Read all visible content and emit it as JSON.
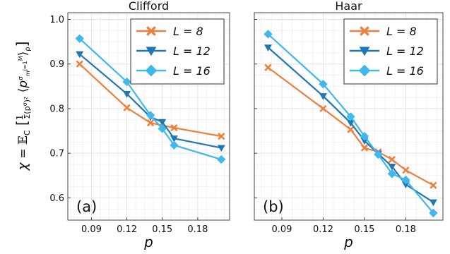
{
  "chart_data": [
    {
      "type": "line",
      "title": "Clifford",
      "panel_tag": "(a)",
      "xlabel": "p",
      "ylabel": "χ = 𝔼_C [ 1 / Σ_m (p_m^σ)² ⟨p_{m_{j=1}^M}^σ⟩_ρ ]",
      "xlim": [
        0.07,
        0.207
      ],
      "ylim": [
        0.55,
        1.015
      ],
      "xticks": [
        0.09,
        0.12,
        0.15,
        0.18
      ],
      "xtick_labels": [
        "0.09",
        "0.12",
        "0.15",
        "0.18"
      ],
      "yticks": [
        0.6,
        0.7,
        0.8,
        0.9,
        1.0
      ],
      "ytick_labels": [
        "0.6",
        "0.7",
        "0.8",
        "0.9",
        "1.0"
      ],
      "grid": true,
      "legend_position": "top-right",
      "series": [
        {
          "name": "L = 8",
          "color": "#f07f3c",
          "marker": "x",
          "x": [
            0.08,
            0.12,
            0.14,
            0.16,
            0.2
          ],
          "y": [
            0.9,
            0.802,
            0.768,
            0.757,
            0.738
          ]
        },
        {
          "name": "L = 12",
          "color": "#1f77b4",
          "marker": "triangle-down",
          "x": [
            0.08,
            0.12,
            0.14,
            0.15,
            0.16,
            0.2
          ],
          "y": [
            0.922,
            0.833,
            0.781,
            0.77,
            0.733,
            0.712
          ]
        },
        {
          "name": "L = 16",
          "color": "#3fb8ec",
          "marker": "diamond",
          "x": [
            0.08,
            0.12,
            0.14,
            0.15,
            0.16,
            0.2
          ],
          "y": [
            0.957,
            0.86,
            0.785,
            0.755,
            0.718,
            0.686
          ]
        }
      ]
    },
    {
      "type": "line",
      "title": "Haar",
      "panel_tag": "(b)",
      "xlabel": "p",
      "xlim": [
        0.07,
        0.207
      ],
      "ylim": [
        0.55,
        1.015
      ],
      "xticks": [
        0.09,
        0.12,
        0.15,
        0.18
      ],
      "xtick_labels": [
        "0.09",
        "0.12",
        "0.15",
        "0.18"
      ],
      "grid": true,
      "legend_position": "top-right",
      "series": [
        {
          "name": "L = 8",
          "color": "#f07f3c",
          "marker": "x",
          "x": [
            0.08,
            0.12,
            0.14,
            0.15,
            0.16,
            0.17,
            0.18,
            0.2
          ],
          "y": [
            0.892,
            0.8,
            0.753,
            0.712,
            0.703,
            0.686,
            0.662,
            0.628
          ]
        },
        {
          "name": "L = 12",
          "color": "#1f77b4",
          "marker": "triangle-down",
          "x": [
            0.08,
            0.12,
            0.14,
            0.15,
            0.16,
            0.17,
            0.18,
            0.2
          ],
          "y": [
            0.937,
            0.828,
            0.768,
            0.728,
            0.699,
            0.67,
            0.63,
            0.59
          ]
        },
        {
          "name": "L = 16",
          "color": "#3fb8ec",
          "marker": "diamond",
          "x": [
            0.08,
            0.12,
            0.14,
            0.15,
            0.16,
            0.17,
            0.18,
            0.2
          ],
          "y": [
            0.967,
            0.855,
            0.782,
            0.738,
            0.697,
            0.654,
            0.64,
            0.566
          ]
        }
      ]
    }
  ]
}
